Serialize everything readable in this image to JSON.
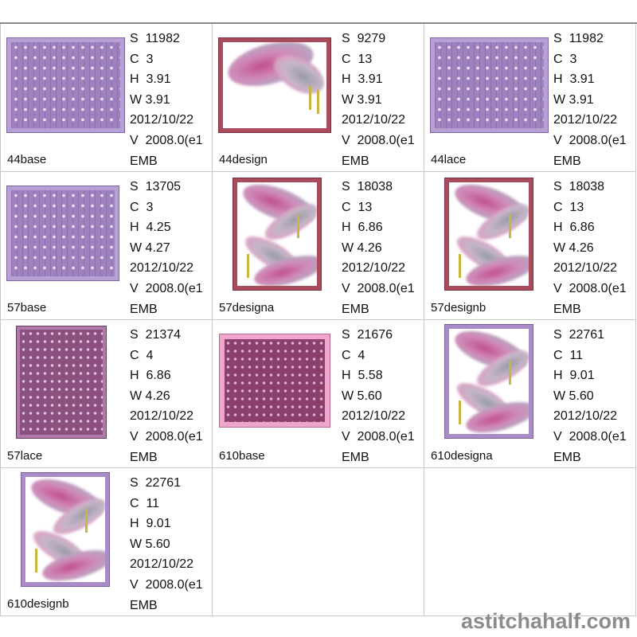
{
  "items": [
    {
      "name": "44base",
      "kind": "lilac",
      "S": "S  11982",
      "C": "C  3",
      "H": "H  3.91",
      "W": "W 3.91",
      "date": "2012/10/22",
      "V": "V  2008.0(e1",
      "fmt": "EMB"
    },
    {
      "name": "44design",
      "kind": "design",
      "S": "S  9279",
      "C": "C  13",
      "H": "H  3.91",
      "W": "W 3.91",
      "date": "2012/10/22",
      "V": "V  2008.0(e1",
      "fmt": "EMB"
    },
    {
      "name": "44lace",
      "kind": "lilac",
      "S": "S  11982",
      "C": "C  3",
      "H": "H  3.91",
      "W": "W 3.91",
      "date": "2012/10/22",
      "V": "V  2008.0(e1",
      "fmt": "EMB"
    },
    {
      "name": "57base",
      "kind": "lilac",
      "S": "S  13705",
      "C": "C  3",
      "H": "H  4.25",
      "W": "W 4.27",
      "date": "2012/10/22",
      "V": "V  2008.0(e1",
      "fmt": "EMB"
    },
    {
      "name": "57designa",
      "kind": "design",
      "S": "S  18038",
      "C": "C  13",
      "H": "H  6.86",
      "W": "W 4.26",
      "date": "2012/10/22",
      "V": "V  2008.0(e1",
      "fmt": "EMB"
    },
    {
      "name": "57designb",
      "kind": "design",
      "S": "S  18038",
      "C": "C  13",
      "H": "H  6.86",
      "W": "W 4.26",
      "date": "2012/10/22",
      "V": "V  2008.0(e1",
      "fmt": "EMB"
    },
    {
      "name": "57lace",
      "kind": "plum",
      "S": "S  21374",
      "C": "C  4",
      "H": "H  6.86",
      "W": "W 4.26",
      "date": "2012/10/22",
      "V": "V  2008.0(e1",
      "fmt": "EMB"
    },
    {
      "name": "610base",
      "kind": "pinkframe",
      "S": "S  21676",
      "C": "C  4",
      "H": "H  5.58",
      "W": "W 5.60",
      "date": "2012/10/22",
      "V": "V  2008.0(e1",
      "fmt": "EMB"
    },
    {
      "name": "610designa",
      "kind": "design-purple",
      "S": "S  22761",
      "C": "C  11",
      "H": "H  9.01",
      "W": "W 5.60",
      "date": "2012/10/22",
      "V": "V  2008.0(e1",
      "fmt": "EMB"
    },
    {
      "name": "610designb",
      "kind": "design-purple",
      "S": "S  22761",
      "C": "C  11",
      "H": "H  9.01",
      "W": "W 5.60",
      "date": "2012/10/22",
      "V": "V  2008.0(e1",
      "fmt": "EMB"
    }
  ],
  "watermark": "astitchahalf.com"
}
